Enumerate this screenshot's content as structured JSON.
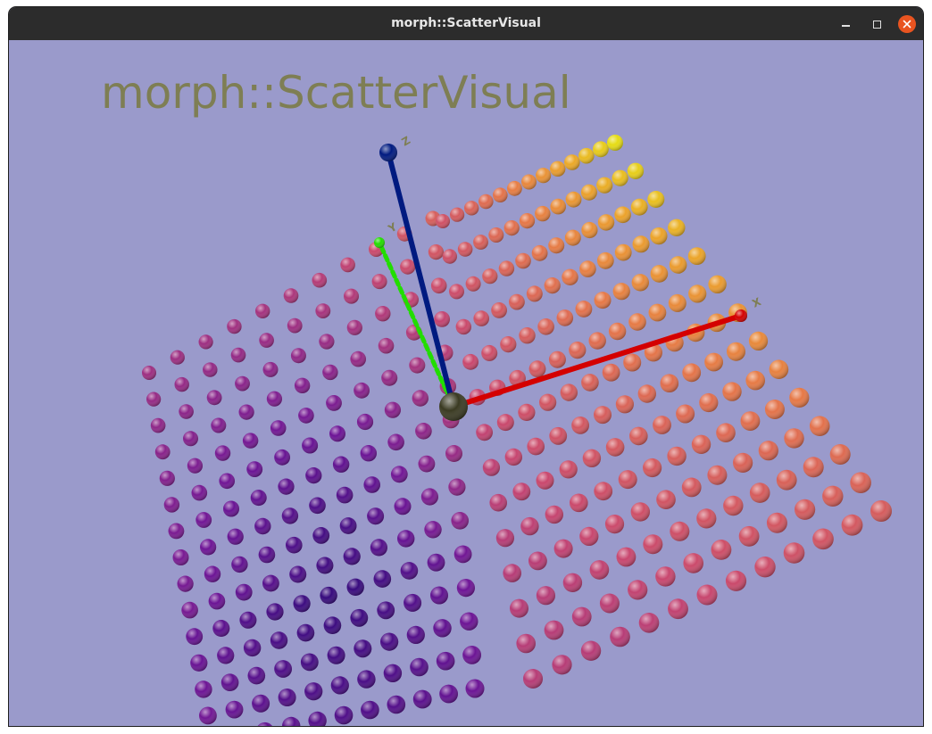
{
  "window": {
    "title": "morph::ScatterVisual"
  },
  "scene": {
    "title": "morph::ScatterVisual",
    "axis_labels": {
      "x": "X",
      "y": "Y",
      "z": "Z"
    }
  },
  "icons": {
    "minimize": "minimize-icon",
    "maximize": "maximize-icon",
    "close": "close-icon"
  },
  "colors": {
    "background": "#9a9acb",
    "titlebar": "#2c2c2c",
    "close_button": "#e95420",
    "title_text": "#7e7e54",
    "x_axis": "#d40000",
    "y_axis": "#22dd00",
    "z_axis": "#001a80"
  }
}
